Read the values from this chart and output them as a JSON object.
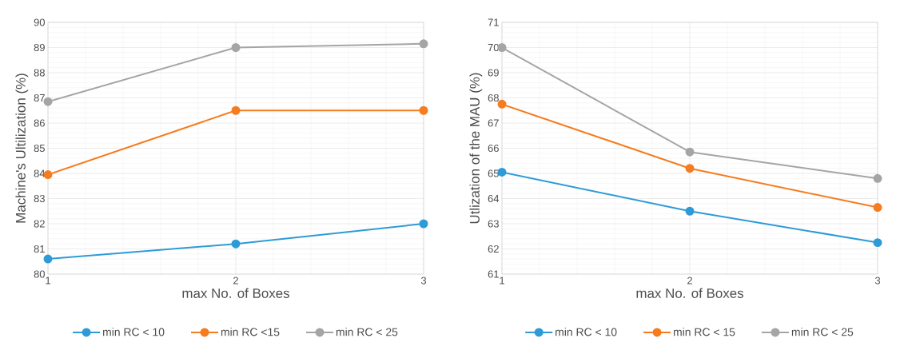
{
  "chart_data": [
    {
      "type": "line",
      "xlabel": "max No. of Boxes",
      "ylabel": "Machine's Ultilization (%)",
      "x": [
        1,
        2,
        3
      ],
      "xlim": [
        1,
        3
      ],
      "xticks": [
        1,
        2,
        3
      ],
      "ylim": [
        80,
        90
      ],
      "yticks": [
        80,
        81,
        82,
        83,
        84,
        85,
        86,
        87,
        88,
        89,
        90
      ],
      "grid": true,
      "legend": "bottom",
      "marker": "circle",
      "line_style": "solid",
      "series": [
        {
          "name": "min RC < 10",
          "color": "#2e9bd6",
          "values": [
            80.6,
            81.2,
            82.0
          ]
        },
        {
          "name": "min RC <15",
          "color": "#f57c1f",
          "values": [
            83.95,
            86.5,
            86.5
          ]
        },
        {
          "name": "min RC < 25",
          "color": "#a5a5a5",
          "values": [
            86.85,
            89.0,
            89.15
          ]
        }
      ]
    },
    {
      "type": "line",
      "xlabel": "max No. of Boxes",
      "ylabel": "Utlization of the MAU (%)",
      "x": [
        1,
        2,
        3
      ],
      "xlim": [
        1,
        3
      ],
      "xticks": [
        1,
        2,
        3
      ],
      "ylim": [
        61,
        71
      ],
      "yticks": [
        61,
        62,
        63,
        64,
        65,
        66,
        67,
        68,
        69,
        70,
        71
      ],
      "grid": true,
      "legend": "bottom",
      "marker": "circle",
      "line_style": "solid",
      "series": [
        {
          "name": "min RC < 10",
          "color": "#2e9bd6",
          "values": [
            65.05,
            63.5,
            62.25
          ]
        },
        {
          "name": "min RC < 15",
          "color": "#f57c1f",
          "values": [
            67.75,
            65.2,
            63.65
          ]
        },
        {
          "name": "min RC < 25",
          "color": "#a5a5a5",
          "values": [
            70.0,
            65.85,
            64.8
          ]
        }
      ]
    }
  ]
}
